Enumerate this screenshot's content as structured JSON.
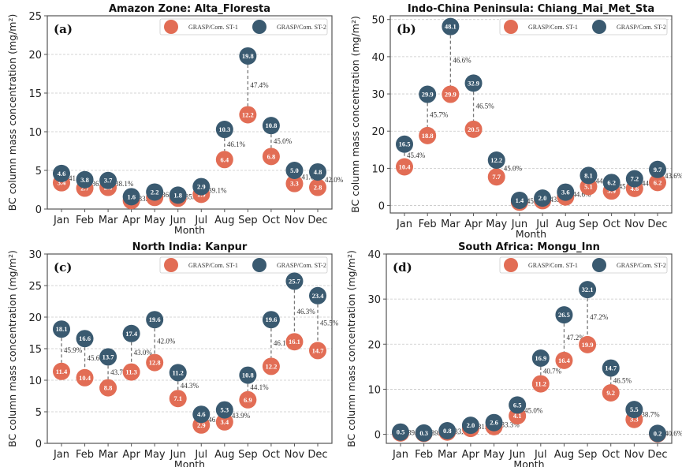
{
  "colors": {
    "st1": "#e26d55",
    "st2": "#3a5a70"
  },
  "chart_data": [
    {
      "type": "scatter",
      "panel_label": "(a)",
      "title": "Amazon Zone: Alta_Floresta",
      "xlabel": "Month",
      "ylabel": "BC column mass concentration (mg/m²)",
      "ylim": [
        0,
        25
      ],
      "yticks": [
        0,
        5,
        10,
        15,
        20,
        25
      ],
      "grid": true,
      "legend": "top-right",
      "categories": [
        "Jan",
        "Feb",
        "Mar",
        "Apr",
        "May",
        "Jun",
        "Jul",
        "Aug",
        "Sep",
        "Oct",
        "Nov",
        "Dec"
      ],
      "series": [
        {
          "name": "GRASP/Com. ST-1",
          "values": [
            3.4,
            2.7,
            2.8,
            1.1,
            1.5,
            1.4,
            1.9,
            6.4,
            12.2,
            6.8,
            3.3,
            2.8
          ]
        },
        {
          "name": "GRASP/Com. ST-2",
          "values": [
            4.6,
            3.8,
            3.7,
            1.6,
            2.2,
            1.8,
            2.9,
            10.3,
            19.8,
            10.8,
            5.0,
            4.8
          ]
        }
      ],
      "percent_labels": [
        "41.4%",
        "36.0%",
        "38.1%",
        "33.5%",
        "36.1%",
        "35.1%",
        "39.1%",
        "46.1%",
        "47.4%",
        "45.0%",
        "41.6%",
        "42.0%"
      ]
    },
    {
      "type": "scatter",
      "panel_label": "(b)",
      "title": "Indo-China Peninsula: Chiang_Mai_Met_Sta",
      "xlabel": "Month",
      "ylabel": "BC column mass concentration (mg/m²)",
      "ylim": [
        -2,
        51
      ],
      "yticks": [
        0,
        10,
        20,
        30,
        40,
        50
      ],
      "grid": true,
      "legend": "top-right",
      "categories": [
        "Jan",
        "Feb",
        "Mar",
        "Apr",
        "May",
        "Jun",
        "Jul",
        "Aug",
        "Sep",
        "Oct",
        "Nov",
        "Dec"
      ],
      "series": [
        {
          "name": "GRASP/Com. ST-1",
          "values": [
            10.4,
            18.8,
            29.9,
            20.5,
            7.7,
            0.9,
            1.3,
            2.3,
            5.1,
            3.9,
            4.6,
            6.2
          ]
        },
        {
          "name": "GRASP/Com. ST-2",
          "values": [
            16.5,
            29.9,
            48.1,
            32.9,
            12.2,
            1.4,
            2.0,
            3.6,
            8.1,
            6.2,
            7.2,
            9.7
          ]
        }
      ],
      "percent_labels": [
        "45.4%",
        "45.7%",
        "46.6%",
        "46.5%",
        "45.0%",
        "45.3%",
        "43.7%",
        "44.6%",
        "44.1%",
        "45.0%",
        "44.4%",
        "43.6%"
      ]
    },
    {
      "type": "scatter",
      "panel_label": "(c)",
      "title": "North India: Kanpur",
      "xlabel": "Month",
      "ylabel": "BC column mass concentration (mg/m²)",
      "ylim": [
        0,
        30
      ],
      "yticks": [
        0,
        5,
        10,
        15,
        20,
        25,
        30
      ],
      "grid": true,
      "legend": "top-right",
      "categories": [
        "Jan",
        "Feb",
        "Mar",
        "Apr",
        "May",
        "Jun",
        "Jul",
        "Aug",
        "Sep",
        "Oct",
        "Nov",
        "Dec"
      ],
      "series": [
        {
          "name": "GRASP/Com. ST-1",
          "values": [
            11.4,
            10.4,
            8.8,
            11.3,
            12.8,
            7.1,
            2.9,
            3.4,
            6.9,
            12.2,
            16.1,
            14.7
          ]
        },
        {
          "name": "GRASP/Com. ST-2",
          "values": [
            18.1,
            16.6,
            13.7,
            17.4,
            19.6,
            11.2,
            4.6,
            5.3,
            10.8,
            19.6,
            25.7,
            23.4
          ]
        }
      ],
      "percent_labels": [
        "45.9%",
        "45.6%",
        "43.7%",
        "43.0%",
        "42.0%",
        "44.3%",
        "46.0%",
        "43.9%",
        "44.1%",
        "46.1%",
        "46.3%",
        "45.5%"
      ]
    },
    {
      "type": "scatter",
      "panel_label": "(d)",
      "title": "South Africa: Mongu_Inn",
      "xlabel": "Month",
      "ylabel": "BC column mass concentration (mg/m²)",
      "ylim": [
        -2,
        40
      ],
      "yticks": [
        0,
        10,
        20,
        30,
        40
      ],
      "grid": true,
      "legend": "top-right",
      "categories": [
        "Jan",
        "Feb",
        "Mar",
        "Apr",
        "May",
        "Jun",
        "Jul",
        "Aug",
        "Sep",
        "Oct",
        "Nov",
        "Dec"
      ],
      "series": [
        {
          "name": "GRASP/Com. ST-1",
          "values": [
            0.3,
            0.2,
            0.5,
            1.3,
            1.7,
            4.1,
            11.2,
            16.4,
            19.9,
            9.2,
            3.3,
            0.1
          ]
        },
        {
          "name": "GRASP/Com. ST-2",
          "values": [
            0.5,
            0.3,
            0.8,
            2.0,
            2.6,
            6.5,
            16.9,
            26.5,
            32.1,
            14.7,
            5.5,
            0.2
          ]
        }
      ],
      "percent_labels": [
        "39.1%",
        "39.5%",
        "33.4%",
        "31.6%",
        "33.3%",
        "45.0%",
        "40.7%",
        "47.2%",
        "47.2%",
        "46.5%",
        "38.7%",
        "40.6%"
      ]
    }
  ]
}
